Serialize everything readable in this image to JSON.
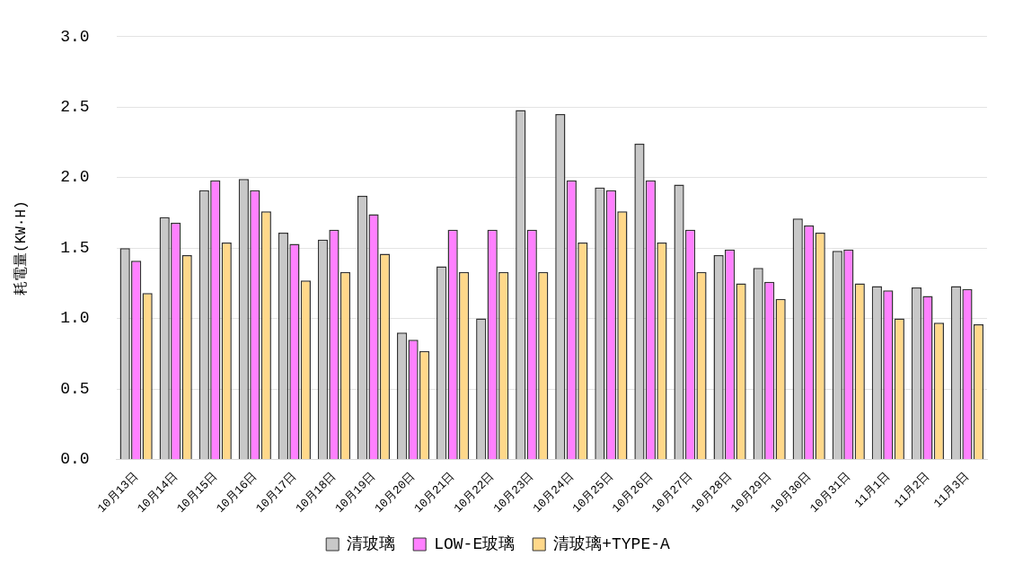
{
  "chart_data": {
    "type": "bar",
    "ylabel": "耗電量(KW·H)",
    "categories": [
      "10月13日",
      "10月14日",
      "10月15日",
      "10月16日",
      "10月17日",
      "10月18日",
      "10月19日",
      "10月20日",
      "10月21日",
      "10月22日",
      "10月23日",
      "10月24日",
      "10月25日",
      "10月26日",
      "10月27日",
      "10月28日",
      "10月29日",
      "10月30日",
      "10月31日",
      "11月1日",
      "11月2日",
      "11月3日"
    ],
    "series": [
      {
        "name": "清玻璃",
        "color": "#c8c8c8",
        "values": [
          1.5,
          1.72,
          1.91,
          1.99,
          1.61,
          1.56,
          1.87,
          0.9,
          1.37,
          1.0,
          2.48,
          2.45,
          1.93,
          2.24,
          1.95,
          1.45,
          1.36,
          1.71,
          1.48,
          1.23,
          1.22,
          1.23
        ]
      },
      {
        "name": "LOW-E玻璃",
        "color": "#ff80ff",
        "values": [
          1.41,
          1.68,
          1.98,
          1.91,
          1.53,
          1.63,
          1.74,
          0.85,
          1.63,
          1.63,
          1.63,
          1.98,
          1.91,
          1.98,
          1.63,
          1.49,
          1.26,
          1.66,
          1.49,
          1.2,
          1.16,
          1.21
        ]
      },
      {
        "name": "清玻璃+TYPE-A",
        "color": "#ffd88a",
        "values": [
          1.18,
          1.45,
          1.54,
          1.76,
          1.27,
          1.33,
          1.46,
          0.77,
          1.33,
          1.33,
          1.33,
          1.54,
          1.76,
          1.54,
          1.33,
          1.25,
          1.14,
          1.61,
          1.25,
          1.0,
          0.97,
          0.96
        ]
      }
    ],
    "ylim": [
      0,
      3
    ],
    "yticks": [
      {
        "value": 0,
        "label": "0.0"
      },
      {
        "value": 0.5,
        "label": "0.5"
      },
      {
        "value": 1,
        "label": "1.0"
      },
      {
        "value": 1.5,
        "label": "1.5"
      },
      {
        "value": 2,
        "label": "2.0"
      },
      {
        "value": 2.5,
        "label": "2.5"
      },
      {
        "value": 3,
        "label": "3.0"
      }
    ],
    "grid": "y",
    "legend": "bottom"
  }
}
